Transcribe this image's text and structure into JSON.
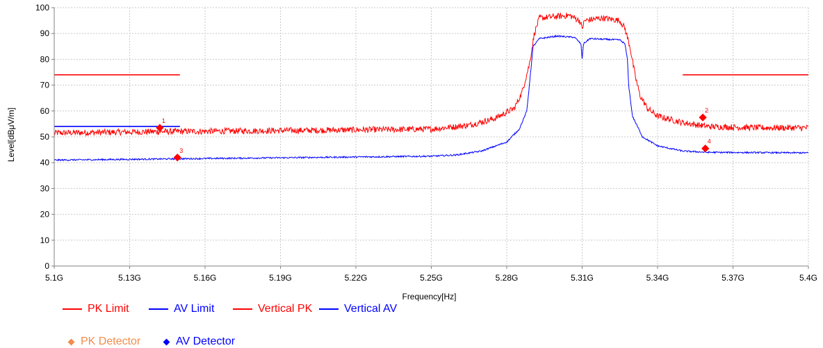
{
  "chart_data": {
    "type": "line",
    "title": "",
    "xlabel": "Frequency[Hz]",
    "ylabel": "Level[dBμV/m]",
    "xlim": [
      5.1,
      5.4
    ],
    "ylim": [
      0,
      100
    ],
    "grid": true,
    "legend_position": "bottom-left",
    "x_ticks": [
      5.1,
      5.13,
      5.16,
      5.19,
      5.22,
      5.25,
      5.28,
      5.31,
      5.34,
      5.37,
      5.4
    ],
    "x_tick_labels": [
      "5.1G",
      "5.13G",
      "5.16G",
      "5.19G",
      "5.22G",
      "5.25G",
      "5.28G",
      "5.31G",
      "5.34G",
      "5.37G",
      "5.4G"
    ],
    "y_ticks": [
      0,
      10,
      20,
      30,
      40,
      50,
      60,
      70,
      80,
      90,
      100
    ],
    "y_tick_labels": [
      "0",
      "10",
      "20",
      "30",
      "40",
      "50",
      "60",
      "70",
      "80",
      "90",
      "100"
    ],
    "series": [
      {
        "name": "PK Limit",
        "color": "#ff0000",
        "segments": [
          [
            [
              5.1,
              74
            ],
            [
              5.15,
              74
            ]
          ],
          [
            [
              5.35,
              74
            ],
            [
              5.4,
              74
            ]
          ]
        ]
      },
      {
        "name": "AV Limit",
        "color": "#0000ff",
        "segments": [
          [
            [
              5.1,
              54
            ],
            [
              5.15,
              54
            ]
          ]
        ]
      },
      {
        "name": "Vertical PK",
        "color": "#ff0000",
        "noise": 1.2,
        "points": [
          [
            5.1,
            51.5
          ],
          [
            5.14,
            52
          ],
          [
            5.2,
            52.5
          ],
          [
            5.25,
            53
          ],
          [
            5.265,
            54.5
          ],
          [
            5.275,
            57
          ],
          [
            5.283,
            61
          ],
          [
            5.286,
            67
          ],
          [
            5.289,
            78
          ],
          [
            5.291,
            90
          ],
          [
            5.293,
            96
          ],
          [
            5.305,
            97
          ],
          [
            5.309,
            95
          ],
          [
            5.31,
            92
          ],
          [
            5.311,
            95
          ],
          [
            5.318,
            96
          ],
          [
            5.325,
            95
          ],
          [
            5.327,
            92
          ],
          [
            5.329,
            85
          ],
          [
            5.331,
            74
          ],
          [
            5.333,
            66
          ],
          [
            5.336,
            61
          ],
          [
            5.34,
            58
          ],
          [
            5.35,
            55.5
          ],
          [
            5.36,
            54
          ],
          [
            5.38,
            53.5
          ],
          [
            5.4,
            53.5
          ]
        ]
      },
      {
        "name": "Vertical AV",
        "color": "#0000ff",
        "noise": 0.3,
        "points": [
          [
            5.1,
            41
          ],
          [
            5.15,
            41.5
          ],
          [
            5.2,
            42
          ],
          [
            5.25,
            42.5
          ],
          [
            5.26,
            43
          ],
          [
            5.27,
            44.5
          ],
          [
            5.28,
            48
          ],
          [
            5.285,
            53
          ],
          [
            5.288,
            60
          ],
          [
            5.2895,
            75
          ],
          [
            5.2905,
            85
          ],
          [
            5.293,
            88
          ],
          [
            5.3,
            89
          ],
          [
            5.307,
            88.5
          ],
          [
            5.3095,
            86
          ],
          [
            5.31,
            80
          ],
          [
            5.3105,
            86
          ],
          [
            5.313,
            88
          ],
          [
            5.325,
            87.5
          ],
          [
            5.327,
            86
          ],
          [
            5.328,
            80
          ],
          [
            5.3285,
            70
          ],
          [
            5.33,
            58
          ],
          [
            5.334,
            50
          ],
          [
            5.34,
            46.5
          ],
          [
            5.35,
            44.5
          ],
          [
            5.36,
            44
          ],
          [
            5.4,
            43.8
          ]
        ]
      }
    ],
    "markers": [
      {
        "label": "1",
        "x": 5.142,
        "y": 53.5,
        "color": "#ff0000"
      },
      {
        "label": "2",
        "x": 5.358,
        "y": 57.5,
        "color": "#ff0000"
      },
      {
        "label": "3",
        "x": 5.149,
        "y": 42,
        "color": "#ff0000"
      },
      {
        "label": "4",
        "x": 5.359,
        "y": 45.5,
        "color": "#ff0000"
      }
    ],
    "legend": [
      {
        "name": "PK Limit",
        "kind": "line",
        "color": "#ff0000"
      },
      {
        "name": "AV Limit",
        "kind": "line",
        "color": "#0000ff"
      },
      {
        "name": "Vertical PK",
        "kind": "line",
        "color": "#ff0000"
      },
      {
        "name": "Vertical AV",
        "kind": "line",
        "color": "#0000ff"
      }
    ],
    "detector_legend": [
      {
        "name": "PK Detector",
        "kind": "diamond",
        "color": "#f28c4a"
      },
      {
        "name": "AV Detector",
        "kind": "diamond",
        "color": "#0000ff"
      }
    ]
  }
}
